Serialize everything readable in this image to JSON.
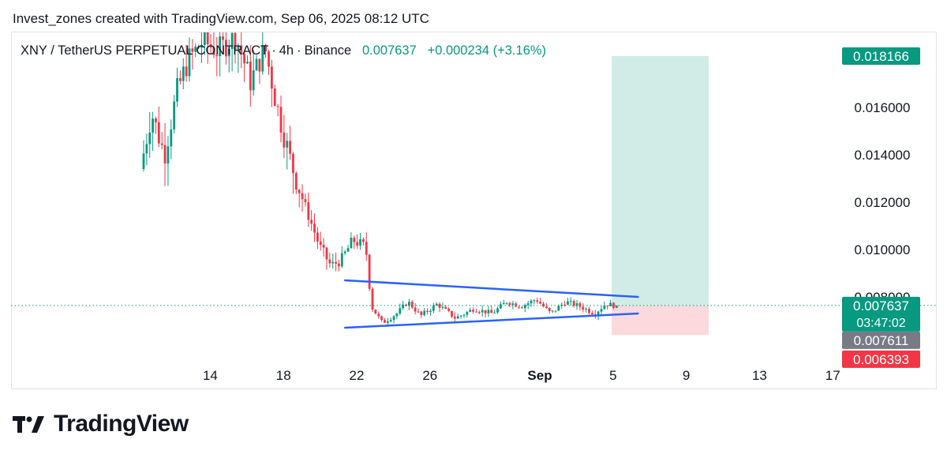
{
  "header": {
    "credit": "Invest_zones created with TradingView.com, Sep 06, 2025 08:12 UTC"
  },
  "legend": {
    "symbol": "XNY / TetherUS PERPETUAL CONTRACT",
    "interval": "4h",
    "exchange": "Binance",
    "last": "0.007637",
    "change": "+0.000234",
    "change_pct": "(+3.16%)"
  },
  "brand": {
    "name": "TradingView",
    "icon": "tradingview-logo-icon"
  },
  "colors": {
    "up": "#089981",
    "down": "#f23645",
    "trendline": "#2962ff",
    "target_zone": "#d1ece6",
    "stop_zone": "#fbd9dc",
    "last_line": "#089981",
    "gray_badge": "#787b86"
  },
  "chart_data": {
    "type": "candlestick",
    "x_ticks": [
      "14",
      "18",
      "22",
      "26",
      "Sep",
      "5",
      "9",
      "13",
      "17"
    ],
    "y_ticks": [
      "0.016000",
      "0.014000",
      "0.012000",
      "0.010000",
      "0.008000"
    ],
    "y_range": [
      0.0052,
      0.0192
    ],
    "price_badges": [
      {
        "label": "0.018166",
        "value": 0.018166,
        "style": "up"
      },
      {
        "label": "0.007637",
        "value": 0.007637,
        "style": "up",
        "countdown": "03:47:02"
      },
      {
        "label": "0.007611",
        "value": 0.007611,
        "style": "gray"
      },
      {
        "label": "0.006393",
        "value": 0.006393,
        "style": "down"
      }
    ],
    "last_price": 0.007637,
    "position": {
      "entry": 0.007637,
      "target": 0.018166,
      "stop": 0.006393,
      "start_date": "2025-09-07",
      "end_date": "2025-09-11"
    },
    "triangle": {
      "upper": [
        {
          "date": "2025-08-23",
          "price": 0.0087
        },
        {
          "date": "2025-09-08",
          "price": 0.008
        }
      ],
      "lower": [
        {
          "date": "2025-08-23",
          "price": 0.0067
        },
        {
          "date": "2025-09-08",
          "price": 0.0073
        }
      ]
    },
    "keypoints": [
      {
        "date": "2025-08-12.0",
        "price": 0.0134
      },
      {
        "date": "2025-08-12.6",
        "price": 0.0158
      },
      {
        "date": "2025-08-13.3",
        "price": 0.014
      },
      {
        "date": "2025-08-14.0",
        "price": 0.0167
      },
      {
        "date": "2025-08-14.6",
        "price": 0.018
      },
      {
        "date": "2025-08-15.4",
        "price": 0.0188
      },
      {
        "date": "2025-08-16.2",
        "price": 0.0184
      },
      {
        "date": "2025-08-17.2",
        "price": 0.019
      },
      {
        "date": "2025-08-18.0",
        "price": 0.0171
      },
      {
        "date": "2025-08-18.8",
        "price": 0.0185
      },
      {
        "date": "2025-08-19.4",
        "price": 0.0162
      },
      {
        "date": "2025-08-20.2",
        "price": 0.0137
      },
      {
        "date": "2025-08-21.0",
        "price": 0.0118
      },
      {
        "date": "2025-08-21.8",
        "price": 0.0101
      },
      {
        "date": "2025-08-22.4",
        "price": 0.0093
      },
      {
        "date": "2025-08-23.0",
        "price": 0.0096
      },
      {
        "date": "2025-08-23.6",
        "price": 0.0104
      },
      {
        "date": "2025-08-24.3",
        "price": 0.0101
      },
      {
        "date": "2025-08-24.6",
        "price": 0.0076
      },
      {
        "date": "2025-08-25.2",
        "price": 0.0069
      },
      {
        "date": "2025-08-26.0",
        "price": 0.0073
      },
      {
        "date": "2025-08-26.6",
        "price": 0.0078
      },
      {
        "date": "2025-08-27.3",
        "price": 0.0072
      },
      {
        "date": "2025-08-28.2",
        "price": 0.0077
      },
      {
        "date": "2025-08-29.2",
        "price": 0.0071
      },
      {
        "date": "2025-08-30.2",
        "price": 0.0075
      },
      {
        "date": "2025-08-31.2",
        "price": 0.0073
      },
      {
        "date": "2025-09-01.0",
        "price": 0.0078
      },
      {
        "date": "2025-09-01.8",
        "price": 0.0076
      },
      {
        "date": "2025-09-02.6",
        "price": 0.0079
      },
      {
        "date": "2025-09-03.4",
        "price": 0.0073
      },
      {
        "date": "2025-09-04.2",
        "price": 0.0078
      },
      {
        "date": "2025-09-05.0",
        "price": 0.0076
      },
      {
        "date": "2025-09-05.8",
        "price": 0.0073
      },
      {
        "date": "2025-09-06.4",
        "price": 0.0077
      },
      {
        "date": "2025-09-06.9",
        "price": 0.007637
      }
    ]
  }
}
